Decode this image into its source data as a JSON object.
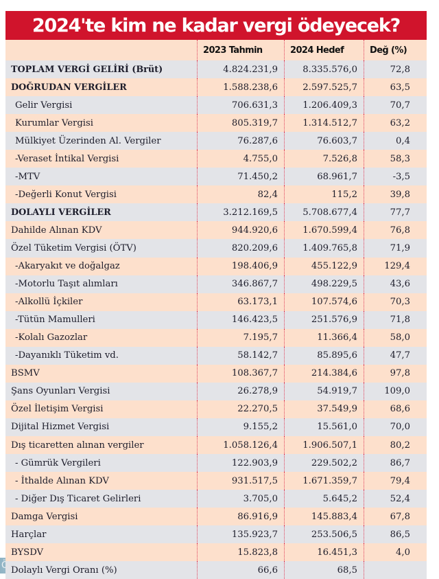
{
  "title": "2024'te kim ne kadar vergi ödeyecek?",
  "colors": {
    "title_bg": "#d0142c",
    "row_gray": "#e3e4e8",
    "row_peach": "#fde0cc",
    "separator": "#e0405a"
  },
  "columns": [
    "",
    "2023 Tahmin",
    "2024 Hedef",
    "Değ (%)"
  ],
  "rows": [
    {
      "label": "TOPLAM VERGİ GELİRİ (Brüt)",
      "y2023": "4.824.231,9",
      "y2024": "8.335.576,0",
      "change": "72,8"
    },
    {
      "label": "DOĞRUDAN VERGİLER",
      "y2023": "1.588.238,6",
      "y2024": "2.597.525,7",
      "change": "63,5"
    },
    {
      "label": "Gelir Vergisi",
      "y2023": "706.631,3",
      "y2024": "1.206.409,3",
      "change": "70,7"
    },
    {
      "label": "Kurumlar Vergisi",
      "y2023": "805.319,7",
      "y2024": "1.314.512,7",
      "change": "63,2"
    },
    {
      "label": "Mülkiyet Üzerinden Al. Vergiler",
      "y2023": "76.287,6",
      "y2024": "76.603,7",
      "change": "0,4"
    },
    {
      "label": "-Veraset İntikal Vergisi",
      "y2023": "4.755,0",
      "y2024": "7.526,8",
      "change": "58,3"
    },
    {
      "label": "-MTV",
      "y2023": "71.450,2",
      "y2024": "68.961,7",
      "change": "-3,5"
    },
    {
      "label": "-Değerli Konut Vergisi",
      "y2023": "82,4",
      "y2024": "115,2",
      "change": "39,8"
    },
    {
      "label": "DOLAYLI VERGİLER",
      "y2023": "3.212.169,5",
      "y2024": "5.708.677,4",
      "change": "77,7"
    },
    {
      "label": "Dahilde Alınan KDV",
      "y2023": "944.920,6",
      "y2024": "1.670.599,4",
      "change": "76,8"
    },
    {
      "label": "Özel Tüketim Vergisi (ÖTV)",
      "y2023": "820.209,6",
      "y2024": "1.409.765,8",
      "change": "71,9"
    },
    {
      "label": "-Akaryakıt ve doğalgaz",
      "y2023": "198.406,9",
      "y2024": "455.122,9",
      "change": "129,4"
    },
    {
      "label": "-Motorlu Taşıt alımları",
      "y2023": "346.867,7",
      "y2024": "498.229,5",
      "change": "43,6"
    },
    {
      "label": "-Alkollü İçkiler",
      "y2023": "63.173,1",
      "y2024": "107.574,6",
      "change": "70,3"
    },
    {
      "label": "-Tütün Mamulleri",
      "y2023": "146.423,5",
      "y2024": "251.576,9",
      "change": "71,8"
    },
    {
      "label": "-Kolalı Gazozlar",
      "y2023": "7.195,7",
      "y2024": "11.366,4",
      "change": "58,0"
    },
    {
      "label": "-Dayanıklı Tüketim vd.",
      "y2023": "58.142,7",
      "y2024": "85.895,6",
      "change": "47,7"
    },
    {
      "label": "BSMV",
      "y2023": "108.367,7",
      "y2024": "214.384,6",
      "change": "97,8"
    },
    {
      "label": "Şans Oyunları Vergisi",
      "y2023": "26.278,9",
      "y2024": "54.919,7",
      "change": "109,0"
    },
    {
      "label": "Özel İletişim Vergisi",
      "y2023": "22.270,5",
      "y2024": "37.549,9",
      "change": "68,6"
    },
    {
      "label": "Dijital Hizmet Vergisi",
      "y2023": "9.155,2",
      "y2024": "15.561,0",
      "change": "70,0"
    },
    {
      "label": "Dış ticaretten alınan vergiler",
      "y2023": "1.058.126,4",
      "y2024": "1.906.507,1",
      "change": "80,2"
    },
    {
      "label": "- Gümrük Vergileri",
      "y2023": "122.903,9",
      "y2024": "229.502,2",
      "change": "86,7"
    },
    {
      "label": "- İthalde Alınan KDV",
      "y2023": "931.517,5",
      "y2024": "1.671.359,7",
      "change": "79,4"
    },
    {
      "label": "- Diğer Dış Ticaret Gelirleri",
      "y2023": "3.705,0",
      "y2024": "5.645,2",
      "change": "52,4"
    },
    {
      "label": "Damga Vergisi",
      "y2023": "86.916,9",
      "y2024": "145.883,4",
      "change": "67,8"
    },
    {
      "label": "Harçlar",
      "y2023": "135.923,7",
      "y2024": "253.506,5",
      "change": "86,5"
    },
    {
      "label": "BYSDV",
      "y2023": "15.823,8",
      "y2024": "16.451,3",
      "change": "4,0"
    },
    {
      "label": "Dolaylı Vergi Oranı (%)",
      "y2023": "66,6",
      "y2024": "68,5",
      "change": ""
    }
  ],
  "corner_fragment": "ÖKON"
}
